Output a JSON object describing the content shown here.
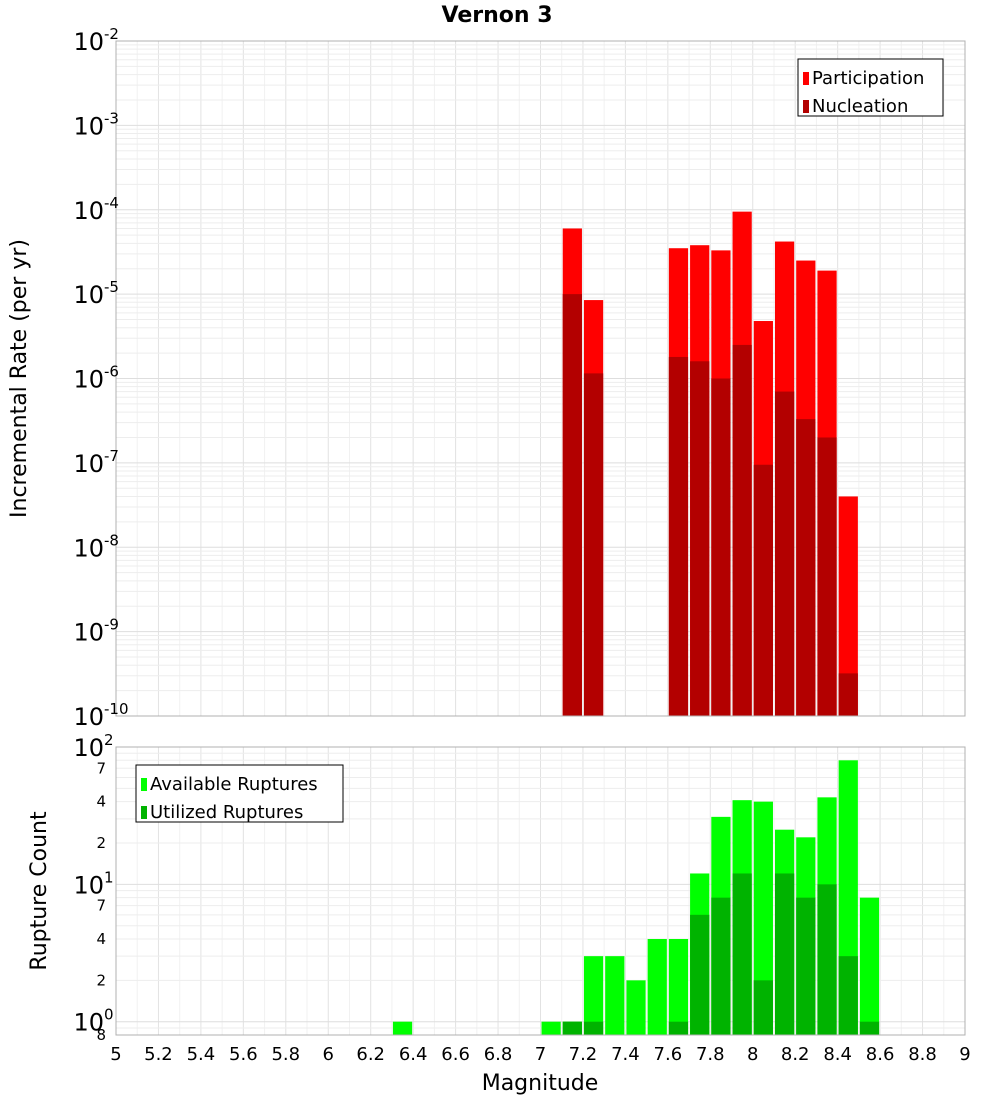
{
  "chart_data": {
    "type": "bar",
    "title": "Vernon 3",
    "xlabel": "Magnitude",
    "xlim": [
      5,
      9
    ],
    "x_ticks": [
      "5",
      "5.2",
      "5.4",
      "5.6",
      "5.8",
      "6",
      "6.2",
      "6.4",
      "6.6",
      "6.8",
      "7",
      "7.2",
      "7.4",
      "7.6",
      "7.8",
      "8",
      "8.2",
      "8.4",
      "8.6",
      "8.8",
      "9"
    ],
    "panels": [
      {
        "name": "rate",
        "ylabel": "Incremental Rate (per yr)",
        "yscale": "log",
        "ylim": [
          1e-10,
          0.01
        ],
        "y_ticks": [
          {
            "base": "10",
            "exp": "-2"
          },
          {
            "base": "10",
            "exp": "-3"
          },
          {
            "base": "10",
            "exp": "-4"
          },
          {
            "base": "10",
            "exp": "-5"
          },
          {
            "base": "10",
            "exp": "-6"
          },
          {
            "base": "10",
            "exp": "-7"
          },
          {
            "base": "10",
            "exp": "-8"
          },
          {
            "base": "10",
            "exp": "-9"
          },
          {
            "base": "10",
            "exp": "-10"
          }
        ],
        "legend": [
          "Participation",
          "Nucleation"
        ],
        "series": [
          {
            "name": "Participation",
            "color": "#ff0000",
            "x": [
              7.15,
              7.25,
              7.65,
              7.75,
              7.85,
              7.95,
              8.05,
              8.15,
              8.25,
              8.35,
              8.45
            ],
            "values": [
              6e-05,
              8.5e-06,
              3.5e-05,
              3.8e-05,
              3.3e-05,
              9.5e-05,
              4.8e-06,
              4.2e-05,
              2.5e-05,
              1.9e-05,
              4e-08
            ]
          },
          {
            "name": "Nucleation",
            "color": "#b30000",
            "x": [
              7.15,
              7.25,
              7.65,
              7.75,
              7.85,
              7.95,
              8.05,
              8.15,
              8.25,
              8.35,
              8.45
            ],
            "values": [
              1e-05,
              1.15e-06,
              1.8e-06,
              1.6e-06,
              1e-06,
              2.5e-06,
              9.5e-08,
              7e-07,
              3.3e-07,
              2e-07,
              3.2e-10
            ]
          }
        ]
      },
      {
        "name": "count",
        "ylabel": "Rupture Count",
        "yscale": "log",
        "ylim": [
          0.8,
          100
        ],
        "y_ticks": [
          {
            "base": "10",
            "exp": "2"
          },
          {
            "base": "10",
            "exp": "1"
          },
          {
            "base": "10",
            "exp": "0"
          }
        ],
        "y_minor_ticks": [
          {
            "value": 70,
            "label": "7"
          },
          {
            "value": 40,
            "label": "4"
          },
          {
            "value": 20,
            "label": "2"
          },
          {
            "value": 7,
            "label": "7"
          },
          {
            "value": 4,
            "label": "4"
          },
          {
            "value": 2,
            "label": "2"
          },
          {
            "value": 0.8,
            "label": "8"
          }
        ],
        "legend": [
          "Available Ruptures",
          "Utilized Ruptures"
        ],
        "series": [
          {
            "name": "Available Ruptures",
            "color": "#00ff00",
            "x": [
              6.35,
              7.05,
              7.15,
              7.25,
              7.35,
              7.45,
              7.55,
              7.65,
              7.75,
              7.85,
              7.95,
              8.05,
              8.15,
              8.25,
              8.35,
              8.45,
              8.55
            ],
            "values": [
              1,
              1,
              1,
              3,
              3,
              2,
              4,
              4,
              12,
              31,
              41,
              40,
              25,
              22,
              43,
              80,
              8
            ]
          },
          {
            "name": "Utilized Ruptures",
            "color": "#00b300",
            "x": [
              7.15,
              7.25,
              7.65,
              7.75,
              7.85,
              7.95,
              8.05,
              8.15,
              8.25,
              8.35,
              8.45,
              8.55
            ],
            "values": [
              1,
              1,
              1,
              6,
              8,
              12,
              2,
              12,
              8,
              10,
              3,
              1
            ]
          }
        ]
      }
    ]
  }
}
